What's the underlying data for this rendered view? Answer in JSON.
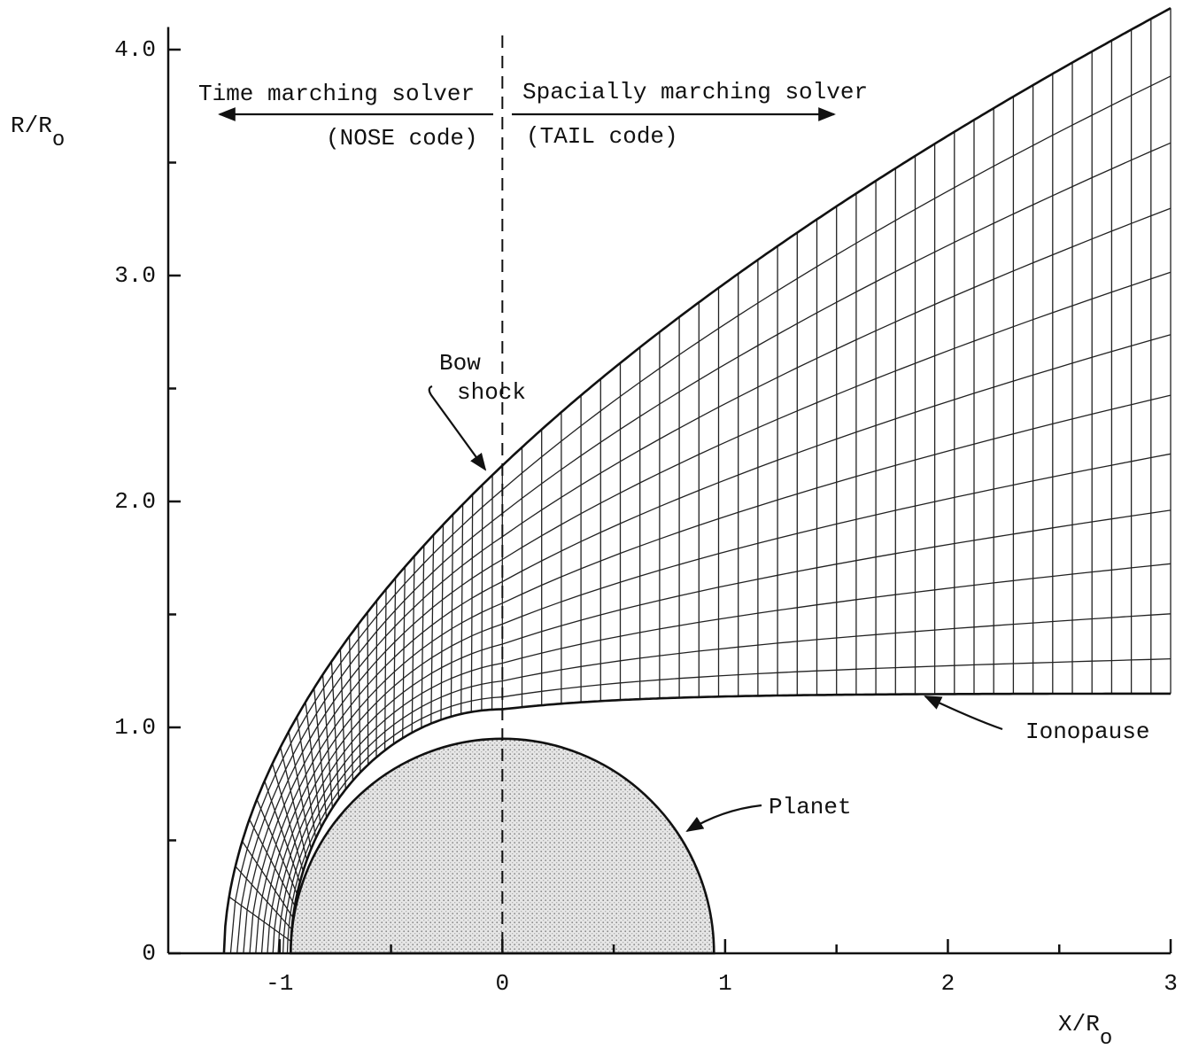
{
  "axes": {
    "x": {
      "label": "X/R",
      "label_subscript": "o",
      "lim": [
        -1.5,
        3
      ],
      "ticks": [
        -1,
        0,
        1,
        2,
        3
      ]
    },
    "y": {
      "label": "R/R",
      "label_subscript": "o",
      "lim": [
        0,
        4.1
      ],
      "ticks": [
        0,
        {
          "value": 1,
          "label": "1.0"
        },
        {
          "value": 2,
          "label": "2.0"
        },
        {
          "value": 3,
          "label": "3.0"
        },
        {
          "value": 4,
          "label": "4.0"
        }
      ]
    }
  },
  "annotations": {
    "time_solver": "Time marching solver",
    "nose_code": "(NOSE code)",
    "space_solver": "Spacially marching solver",
    "tail_code": "(TAIL code)",
    "bow_shock": [
      "Bow",
      "shock"
    ],
    "ionopause": "Ionopause",
    "planet": "Planet"
  }
}
